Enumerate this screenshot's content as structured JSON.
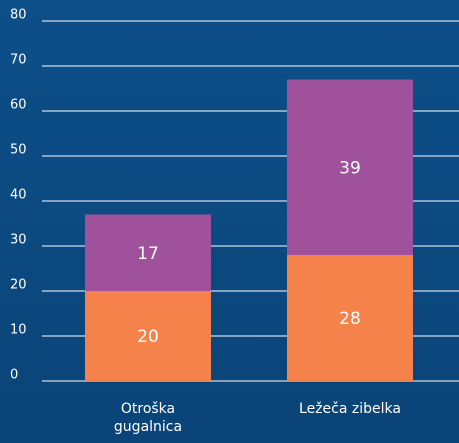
{
  "chart_data": {
    "type": "stacked_bar",
    "categories": [
      "Otroška gugalnica",
      "Ležeča zibelka"
    ],
    "series": [
      {
        "color": "#f5814b",
        "values": [
          20,
          28
        ]
      },
      {
        "color": "#a0519b",
        "values": [
          17,
          39
        ]
      }
    ],
    "ylim": [
      0,
      80
    ],
    "yticks": [
      0,
      10,
      20,
      30,
      40,
      50,
      60,
      70,
      80
    ],
    "grid": true
  }
}
